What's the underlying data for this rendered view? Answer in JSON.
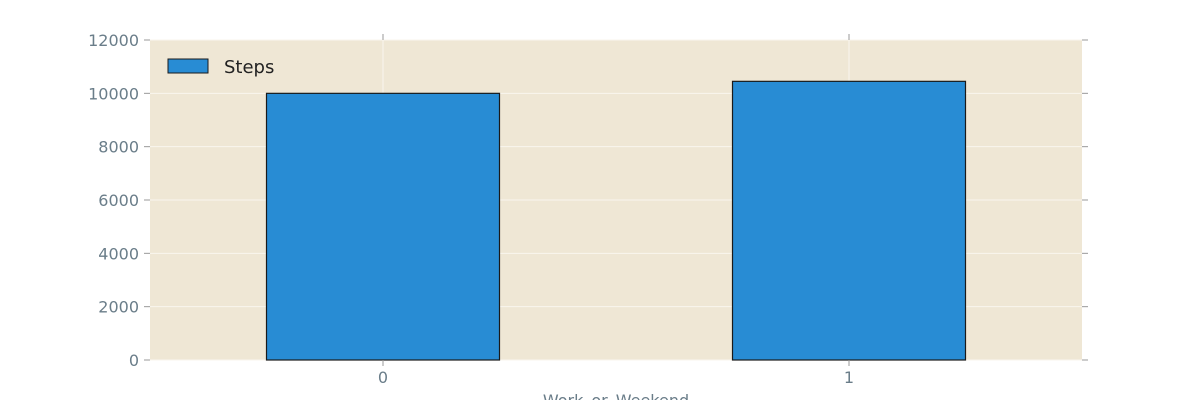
{
  "chart_data": {
    "type": "bar",
    "categories": [
      "0",
      "1"
    ],
    "series": [
      {
        "name": "Steps",
        "values": [
          10000,
          10450
        ]
      }
    ],
    "xlabel": "Work_or_Weekend",
    "ylabel": "",
    "ylim": [
      0,
      12000
    ],
    "yticks": [
      0,
      2000,
      4000,
      6000,
      8000,
      10000,
      12000
    ],
    "grid": true,
    "legend": {
      "position": "top-left",
      "entries": [
        "Steps"
      ]
    },
    "colors": {
      "bar": "#288cd4",
      "bar_edge": "#1a1a1a",
      "plot_bg": "#efe7d5",
      "grid": "#faf6ee",
      "tick_text": "#6a7d89"
    }
  }
}
